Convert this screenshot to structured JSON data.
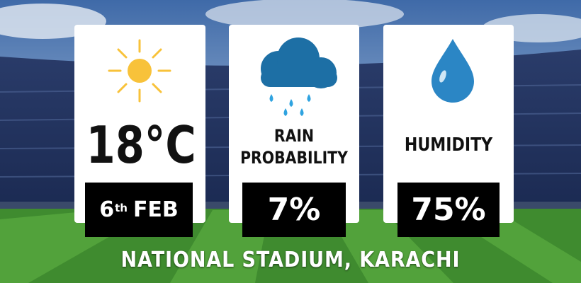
{
  "cards": [
    {
      "value": "18°C",
      "date": {
        "day": "6",
        "suffix": "th",
        "month": "FEB"
      }
    },
    {
      "label_lines": [
        "RAIN",
        "PROBABILITY"
      ],
      "value": "7%"
    },
    {
      "label": "HUMIDITY",
      "value": "75%"
    }
  ],
  "footer": "NATIONAL STADIUM, KARACHI"
}
